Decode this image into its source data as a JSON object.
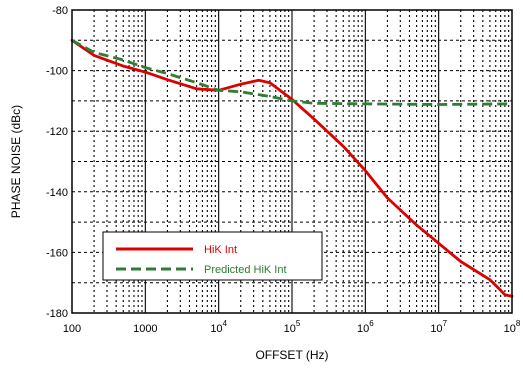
{
  "chart_data": {
    "type": "line",
    "xscale": "log",
    "xlim": [
      100,
      100000000
    ],
    "ylim": [
      -180,
      -80
    ],
    "xlabel": "OFFSET (Hz)",
    "ylabel": "PHASE NOISE (dBc)",
    "grid": true,
    "legend_position": "lower-left",
    "x_ticks": [
      {
        "value": 100,
        "label": "100"
      },
      {
        "value": 1000,
        "label": "1000"
      },
      {
        "value": 10000,
        "base": "10",
        "exp": "4"
      },
      {
        "value": 100000,
        "base": "10",
        "exp": "5"
      },
      {
        "value": 1000000,
        "base": "10",
        "exp": "6"
      },
      {
        "value": 10000000,
        "base": "10",
        "exp": "7"
      },
      {
        "value": 100000000,
        "base": "10",
        "exp": "8"
      }
    ],
    "y_ticks": [
      {
        "value": -80,
        "label": "-80"
      },
      {
        "value": -100,
        "label": "-100"
      },
      {
        "value": -120,
        "label": "-120"
      },
      {
        "value": -140,
        "label": "-140"
      },
      {
        "value": -160,
        "label": "-160"
      },
      {
        "value": -180,
        "label": "-180"
      }
    ],
    "series": [
      {
        "name": "HiK Int",
        "color": "#dd0000",
        "style": "solid",
        "points": [
          [
            100,
            -90
          ],
          [
            200,
            -95
          ],
          [
            500,
            -98.5
          ],
          [
            1000,
            -100.5
          ],
          [
            2000,
            -103
          ],
          [
            5000,
            -106
          ],
          [
            10000,
            -106.5
          ],
          [
            20000,
            -104.5
          ],
          [
            35000,
            -103.2
          ],
          [
            50000,
            -104
          ],
          [
            100000,
            -109.5
          ],
          [
            200000,
            -116
          ],
          [
            500000,
            -125
          ],
          [
            1000000,
            -133
          ],
          [
            2000000,
            -142
          ],
          [
            5000000,
            -151
          ],
          [
            10000000,
            -157
          ],
          [
            20000000,
            -163
          ],
          [
            50000000,
            -169
          ],
          [
            70000000,
            -172.5
          ],
          [
            80000000,
            -174
          ],
          [
            100000000,
            -174.5
          ]
        ]
      },
      {
        "name": "Predicted HiK Int",
        "color": "#2e7d32",
        "style": "dashed",
        "points": [
          [
            100,
            -90
          ],
          [
            200,
            -94
          ],
          [
            500,
            -96.5
          ],
          [
            1000,
            -99
          ],
          [
            2000,
            -101
          ],
          [
            5000,
            -104
          ],
          [
            10000,
            -106.5
          ],
          [
            20000,
            -107
          ],
          [
            50000,
            -108.5
          ],
          [
            100000,
            -110
          ],
          [
            200000,
            -110.8
          ],
          [
            1000000,
            -111
          ],
          [
            10000000,
            -111.2
          ],
          [
            100000000,
            -111
          ]
        ]
      }
    ]
  }
}
